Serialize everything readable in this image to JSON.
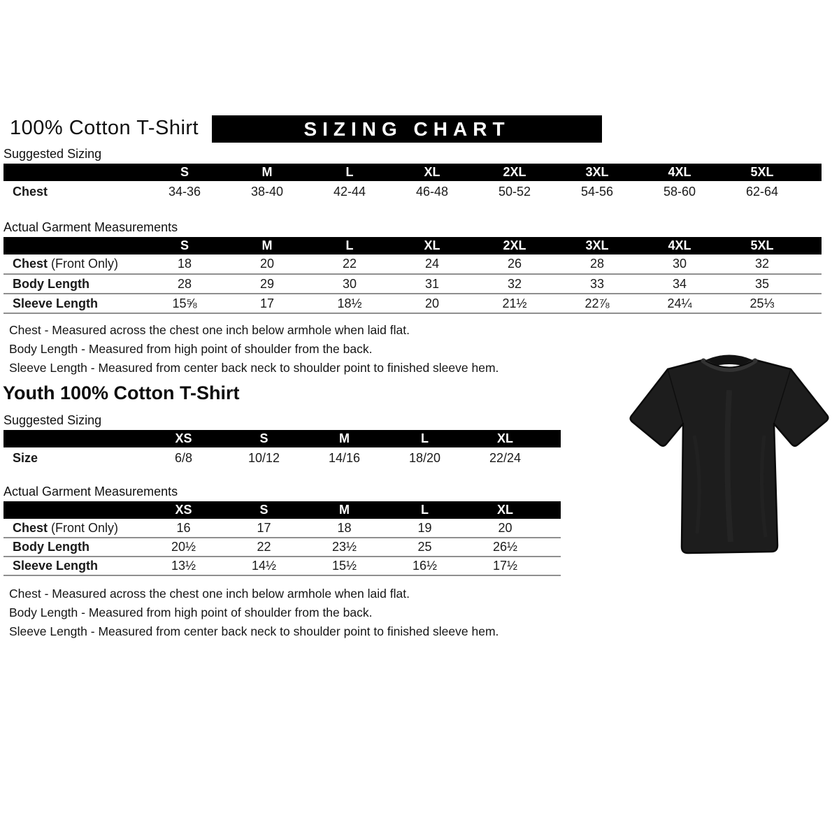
{
  "header": {
    "title": "100% Cotton T-Shirt",
    "banner": "SIZING CHART"
  },
  "adult": {
    "suggested_label": "Suggested Sizing",
    "actual_label": "Actual Garment Measurements",
    "suggested": {
      "columns": [
        "S",
        "M",
        "L",
        "XL",
        "2XL",
        "3XL",
        "4XL",
        "5XL"
      ],
      "rows": [
        {
          "bold": "Chest",
          "rest": "",
          "values": [
            "34-36",
            "38-40",
            "42-44",
            "46-48",
            "50-52",
            "54-56",
            "58-60",
            "62-64"
          ]
        }
      ]
    },
    "actual": {
      "columns": [
        "S",
        "M",
        "L",
        "XL",
        "2XL",
        "3XL",
        "4XL",
        "5XL"
      ],
      "rows": [
        {
          "bold": "Chest",
          "rest": " (Front Only)",
          "values": [
            "18",
            "20",
            "22",
            "24",
            "26",
            "28",
            "30",
            "32"
          ]
        },
        {
          "bold": "Body Length",
          "rest": "",
          "values": [
            "28",
            "29",
            "30",
            "31",
            "32",
            "33",
            "34",
            "35"
          ]
        },
        {
          "bold": "Sleeve Length",
          "rest": "",
          "values": [
            "15⅝",
            "17",
            "18½",
            "20",
            "21½",
            "22⅞",
            "24¼",
            "25⅓"
          ]
        }
      ]
    },
    "notes": [
      "Chest - Measured across the chest one inch below armhole when laid flat.",
      "Body Length - Measured from high point of shoulder from the back.",
      "Sleeve Length - Measured from center back neck to shoulder point to finished sleeve hem."
    ]
  },
  "youth": {
    "title": "Youth 100% Cotton T-Shirt",
    "suggested_label": "Suggested Sizing",
    "actual_label": "Actual Garment Measurements",
    "suggested": {
      "columns": [
        "XS",
        "S",
        "M",
        "L",
        "XL"
      ],
      "rows": [
        {
          "bold": "Size",
          "rest": "",
          "values": [
            "6/8",
            "10/12",
            "14/16",
            "18/20",
            "22/24"
          ]
        }
      ]
    },
    "actual": {
      "columns": [
        "XS",
        "S",
        "M",
        "L",
        "XL"
      ],
      "rows": [
        {
          "bold": "Chest",
          "rest": " (Front Only)",
          "values": [
            "16",
            "17",
            "18",
            "19",
            "20"
          ]
        },
        {
          "bold": "Body Length",
          "rest": "",
          "values": [
            "20½",
            "22",
            "23½",
            "25",
            "26½"
          ]
        },
        {
          "bold": "Sleeve Length",
          "rest": "",
          "values": [
            "13½",
            "14½",
            "15½",
            "16½",
            "17½"
          ]
        }
      ]
    },
    "notes": [
      "Chest - Measured across the chest one inch below armhole when laid flat.",
      "Body Length - Measured from high point of shoulder from the back.",
      "Sleeve Length - Measured from center back neck to shoulder point to finished sleeve hem."
    ]
  },
  "tshirt": {
    "alt": "Black short-sleeve crew neck t-shirt, front view",
    "color": "#1d1d1d"
  },
  "colors": {
    "banner_bg": "#000000",
    "banner_text": "#ffffff",
    "table_header_bg": "#000000",
    "table_header_text": "#ffffff",
    "row_border": "#8f8f8f",
    "section_underline": "#b0b0b0"
  }
}
